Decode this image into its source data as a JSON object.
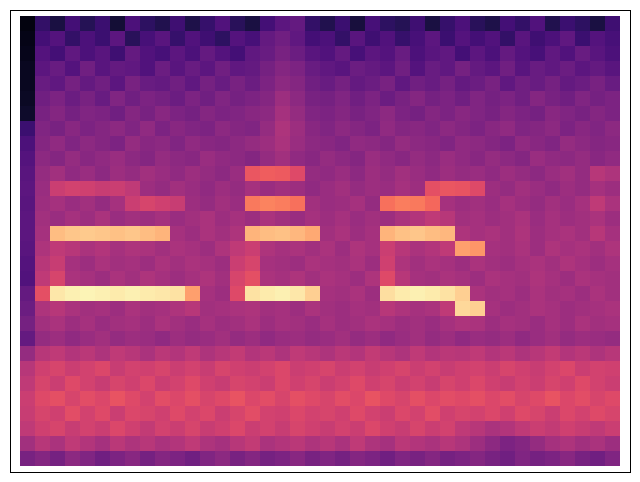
{
  "chart_data": {
    "type": "heatmap",
    "color": "magma",
    "tick_labels": false,
    "zlim": [
      0,
      100
    ],
    "cells": [
      [
        3,
        18,
        12,
        22,
        15,
        20,
        10,
        24,
        17,
        14,
        21,
        13,
        19,
        25,
        16,
        12,
        22,
        28,
        30,
        18,
        14,
        20,
        11,
        23,
        17,
        15,
        21,
        12,
        19,
        24,
        16,
        13,
        22,
        18,
        25,
        14,
        20,
        17,
        12,
        21
      ],
      [
        4,
        22,
        26,
        18,
        24,
        20,
        28,
        16,
        23,
        27,
        19,
        25,
        21,
        17,
        26,
        23,
        30,
        33,
        29,
        22,
        24,
        18,
        27,
        21,
        25,
        19,
        23,
        28,
        20,
        26,
        22,
        25,
        18,
        27,
        21,
        24,
        29,
        20,
        26,
        23
      ],
      [
        5,
        26,
        22,
        29,
        24,
        27,
        21,
        30,
        25,
        23,
        28,
        24,
        30,
        26,
        22,
        29,
        31,
        35,
        32,
        27,
        25,
        30,
        23,
        28,
        26,
        31,
        24,
        27,
        29,
        22,
        28,
        24,
        30,
        26,
        23,
        29,
        25,
        31,
        27,
        24
      ],
      [
        6,
        28,
        31,
        26,
        33,
        27,
        30,
        29,
        25,
        32,
        27,
        31,
        28,
        33,
        29,
        30,
        34,
        38,
        36,
        31,
        29,
        27,
        32,
        30,
        28,
        33,
        26,
        31,
        29,
        34,
        30,
        28,
        33,
        27,
        31,
        29,
        32,
        28,
        30,
        27
      ],
      [
        6,
        31,
        29,
        34,
        30,
        33,
        28,
        35,
        31,
        30,
        33,
        29,
        34,
        31,
        35,
        32,
        36,
        40,
        38,
        33,
        31,
        34,
        30,
        32,
        35,
        29,
        33,
        31,
        34,
        30,
        32,
        35,
        29,
        33,
        31,
        34,
        30,
        32,
        35,
        31
      ],
      [
        7,
        33,
        36,
        32,
        35,
        31,
        37,
        33,
        36,
        34,
        32,
        36,
        33,
        37,
        34,
        36,
        38,
        44,
        40,
        35,
        34,
        37,
        33,
        36,
        32,
        35,
        38,
        34,
        36,
        33,
        37,
        34,
        36,
        33,
        38,
        35,
        33,
        37,
        34,
        36
      ],
      [
        8,
        35,
        38,
        34,
        37,
        36,
        33,
        38,
        35,
        39,
        36,
        34,
        38,
        36,
        37,
        39,
        40,
        46,
        42,
        37,
        36,
        38,
        35,
        37,
        40,
        36,
        34,
        38,
        36,
        39,
        37,
        35,
        38,
        36,
        34,
        39,
        37,
        35,
        38,
        36
      ],
      [
        20,
        37,
        35,
        39,
        36,
        38,
        40,
        37,
        41,
        36,
        39,
        37,
        36,
        40,
        38,
        37,
        42,
        48,
        44,
        39,
        37,
        40,
        38,
        36,
        41,
        38,
        39,
        37,
        40,
        38,
        36,
        39,
        41,
        37,
        38,
        40,
        36,
        39,
        37,
        40
      ],
      [
        24,
        38,
        41,
        37,
        40,
        38,
        36,
        42,
        39,
        40,
        37,
        41,
        39,
        38,
        40,
        42,
        44,
        47,
        43,
        40,
        39,
        37,
        41,
        40,
        38,
        42,
        40,
        39,
        37,
        41,
        40,
        38,
        36,
        41,
        39,
        37,
        42,
        40,
        38,
        39
      ],
      [
        26,
        40,
        38,
        42,
        39,
        41,
        43,
        40,
        38,
        42,
        40,
        39,
        43,
        41,
        40,
        38,
        42,
        45,
        41,
        39,
        42,
        40,
        38,
        43,
        41,
        39,
        42,
        40,
        43,
        41,
        39,
        42,
        40,
        38,
        43,
        41,
        40,
        42,
        39,
        41
      ],
      [
        27,
        42,
        45,
        41,
        43,
        40,
        44,
        42,
        45,
        43,
        41,
        44,
        42,
        40,
        43,
        64,
        66,
        65,
        60,
        42,
        41,
        43,
        40,
        44,
        42,
        45,
        43,
        41,
        44,
        42,
        43,
        41,
        44,
        42,
        40,
        43,
        45,
        42,
        50,
        48
      ],
      [
        28,
        43,
        55,
        57,
        56,
        54,
        55,
        52,
        44,
        42,
        45,
        43,
        41,
        44,
        42,
        46,
        43,
        45,
        44,
        41,
        43,
        45,
        42,
        44,
        43,
        46,
        44,
        62,
        64,
        63,
        60,
        44,
        42,
        45,
        43,
        41,
        44,
        42,
        46,
        44
      ],
      [
        27,
        44,
        46,
        43,
        45,
        42,
        46,
        55,
        58,
        56,
        54,
        44,
        42,
        45,
        43,
        72,
        74,
        73,
        70,
        45,
        43,
        44,
        46,
        42,
        70,
        73,
        72,
        68,
        46,
        44,
        45,
        43,
        46,
        44,
        42,
        45,
        43,
        46,
        52,
        47
      ],
      [
        28,
        45,
        43,
        46,
        44,
        47,
        43,
        45,
        44,
        46,
        43,
        45,
        47,
        44,
        46,
        44,
        47,
        45,
        43,
        46,
        44,
        46,
        43,
        45,
        44,
        47,
        49,
        52,
        50,
        45,
        46,
        44,
        45,
        47,
        43,
        46,
        44,
        45,
        47,
        44
      ],
      [
        28,
        46,
        86,
        88,
        89,
        88,
        87,
        88,
        86,
        84,
        46,
        44,
        47,
        45,
        48,
        84,
        86,
        87,
        85,
        82,
        45,
        47,
        44,
        46,
        84,
        87,
        88,
        86,
        85,
        48,
        46,
        47,
        45,
        48,
        44,
        46,
        47,
        45,
        50,
        46
      ],
      [
        27,
        48,
        52,
        50,
        47,
        49,
        46,
        48,
        47,
        45,
        47,
        46,
        44,
        48,
        52,
        55,
        48,
        46,
        47,
        45,
        47,
        44,
        48,
        46,
        55,
        50,
        47,
        49,
        52,
        80,
        78,
        46,
        45,
        47,
        44,
        48,
        46,
        47,
        45,
        48
      ],
      [
        26,
        50,
        54,
        46,
        44,
        47,
        45,
        46,
        44,
        47,
        45,
        47,
        46,
        44,
        55,
        58,
        46,
        45,
        44,
        47,
        46,
        45,
        47,
        44,
        56,
        48,
        45,
        47,
        46,
        44,
        47,
        45,
        44,
        46,
        47,
        45,
        48,
        46,
        44,
        46
      ],
      [
        25,
        52,
        58,
        47,
        46,
        44,
        47,
        45,
        48,
        46,
        44,
        46,
        48,
        45,
        58,
        62,
        47,
        46,
        48,
        45,
        47,
        46,
        44,
        48,
        60,
        50,
        46,
        45,
        47,
        46,
        44,
        47,
        46,
        45,
        48,
        46,
        44,
        47,
        46,
        45
      ],
      [
        30,
        62,
        95,
        97,
        98,
        97,
        96,
        97,
        96,
        95,
        94,
        80,
        46,
        44,
        60,
        94,
        96,
        97,
        95,
        90,
        46,
        45,
        47,
        44,
        93,
        96,
        97,
        96,
        94,
        90,
        47,
        45,
        46,
        44,
        47,
        45,
        46,
        44,
        47,
        45
      ],
      [
        32,
        48,
        50,
        47,
        45,
        46,
        44,
        47,
        45,
        46,
        48,
        50,
        45,
        46,
        47,
        48,
        45,
        46,
        44,
        47,
        45,
        44,
        46,
        45,
        50,
        48,
        46,
        47,
        52,
        92,
        90,
        46,
        44,
        45,
        47,
        46,
        44,
        45,
        46,
        47
      ],
      [
        34,
        45,
        47,
        44,
        46,
        43,
        45,
        46,
        44,
        47,
        45,
        43,
        46,
        44,
        45,
        47,
        44,
        46,
        45,
        43,
        46,
        44,
        45,
        47,
        46,
        44,
        45,
        43,
        46,
        48,
        47,
        44,
        46,
        45,
        43,
        46,
        44,
        47,
        45,
        46
      ],
      [
        30,
        42,
        44,
        41,
        43,
        45,
        42,
        44,
        43,
        41,
        44,
        42,
        43,
        45,
        42,
        44,
        41,
        43,
        44,
        42,
        43,
        45,
        42,
        44,
        41,
        43,
        45,
        42,
        44,
        41,
        43,
        42,
        44,
        41,
        43,
        45,
        42,
        44,
        43,
        42
      ],
      [
        42,
        50,
        52,
        49,
        51,
        48,
        52,
        50,
        47,
        51,
        49,
        52,
        48,
        50,
        53,
        49,
        51,
        48,
        52,
        50,
        48,
        51,
        49,
        53,
        50,
        48,
        52,
        49,
        51,
        50,
        52,
        49,
        51,
        48,
        50,
        53,
        49,
        51,
        48,
        50
      ],
      [
        50,
        56,
        58,
        55,
        57,
        59,
        54,
        57,
        56,
        58,
        55,
        57,
        54,
        58,
        56,
        55,
        57,
        59,
        55,
        56,
        58,
        55,
        57,
        54,
        56,
        58,
        55,
        57,
        54,
        56,
        57,
        55,
        58,
        56,
        54,
        57,
        59,
        55,
        57,
        56
      ],
      [
        52,
        58,
        55,
        60,
        57,
        54,
        58,
        56,
        59,
        55,
        57,
        60,
        56,
        54,
        58,
        57,
        55,
        59,
        56,
        58,
        55,
        57,
        60,
        56,
        58,
        55,
        57,
        54,
        58,
        56,
        59,
        56,
        54,
        57,
        55,
        58,
        56,
        60,
        57,
        55
      ],
      [
        55,
        60,
        62,
        58,
        61,
        59,
        63,
        60,
        57,
        61,
        59,
        62,
        58,
        60,
        63,
        59,
        61,
        58,
        62,
        60,
        58,
        61,
        59,
        63,
        60,
        58,
        62,
        59,
        61,
        60,
        62,
        59,
        61,
        58,
        60,
        63,
        59,
        61,
        58,
        60
      ],
      [
        54,
        58,
        56,
        61,
        57,
        60,
        55,
        59,
        58,
        56,
        60,
        57,
        59,
        55,
        58,
        61,
        57,
        56,
        59,
        57,
        58,
        56,
        60,
        57,
        55,
        59,
        57,
        61,
        56,
        58,
        57,
        59,
        56,
        60,
        58,
        55,
        59,
        57,
        60,
        58
      ],
      [
        52,
        56,
        58,
        54,
        57,
        55,
        59,
        56,
        53,
        57,
        55,
        58,
        54,
        56,
        59,
        55,
        57,
        54,
        58,
        56,
        54,
        57,
        55,
        59,
        56,
        54,
        58,
        55,
        57,
        52,
        50,
        47,
        49,
        52,
        55,
        53,
        56,
        54,
        52,
        55
      ],
      [
        45,
        50,
        47,
        52,
        49,
        46,
        51,
        48,
        50,
        47,
        49,
        52,
        48,
        46,
        50,
        53,
        47,
        49,
        51,
        48,
        50,
        47,
        52,
        48,
        46,
        51,
        49,
        47,
        50,
        48,
        44,
        40,
        36,
        38,
        42,
        46,
        48,
        45,
        47,
        44
      ],
      [
        35,
        38,
        34,
        40,
        37,
        33,
        36,
        39,
        34,
        38,
        36,
        33,
        37,
        40,
        35,
        38,
        34,
        36,
        39,
        35,
        37,
        34,
        38,
        36,
        33,
        37,
        35,
        38,
        34,
        36,
        38,
        35,
        33,
        37,
        34,
        36,
        39,
        35,
        33,
        37
      ]
    ]
  }
}
